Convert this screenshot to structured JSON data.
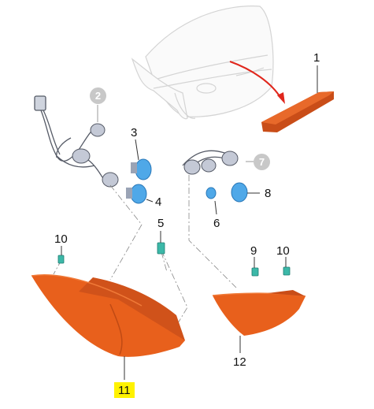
{
  "diagram": {
    "callouts": {
      "c1": "1",
      "c2": "2",
      "c3": "3",
      "c4": "4",
      "c5": "5",
      "c6": "6",
      "c7": "7",
      "c8": "8",
      "c9": "9",
      "c10_left": "10",
      "c10_right": "10",
      "c11": "11",
      "c12": "12"
    },
    "colors": {
      "lamp_orange": "#e8601c",
      "lamp_dark": "#b8410e",
      "bulb_blue": "#4fa8e8",
      "clip_teal": "#3cb8a8",
      "highlight": "#fff200",
      "arrow_red": "#e0261c"
    },
    "icons": [
      "trunk-lid",
      "high-mount-stop-lamp",
      "wiring-harness",
      "bulb",
      "clip",
      "tail-lamp-outer",
      "tail-lamp-inner"
    ]
  }
}
